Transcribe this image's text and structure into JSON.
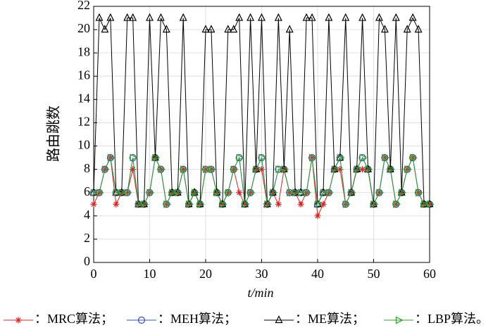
{
  "chart_data": {
    "type": "line",
    "x_label": "t/min",
    "y_label": "路由跳数",
    "x": [
      0,
      1,
      2,
      3,
      4,
      5,
      6,
      7,
      8,
      9,
      10,
      11,
      12,
      13,
      14,
      15,
      16,
      17,
      18,
      19,
      20,
      21,
      22,
      23,
      24,
      25,
      26,
      27,
      28,
      29,
      30,
      31,
      32,
      33,
      34,
      35,
      36,
      37,
      38,
      39,
      40,
      41,
      42,
      43,
      44,
      45,
      46,
      47,
      48,
      49,
      50,
      51,
      52,
      53,
      54,
      55,
      56,
      57,
      58,
      59,
      60
    ],
    "series": [
      {
        "name": "：MRC算法；",
        "color": "#e02020",
        "marker": "star",
        "values": [
          5,
          6,
          8,
          9,
          5,
          6,
          6,
          8,
          5,
          5,
          6,
          9,
          8,
          5,
          6,
          6,
          8,
          5,
          6,
          5,
          8,
          8,
          6,
          5,
          6,
          8,
          6,
          5,
          6,
          8,
          8,
          5,
          6,
          5,
          8,
          6,
          6,
          5,
          6,
          9,
          4,
          5,
          6,
          8,
          8,
          5,
          6,
          8,
          8,
          8,
          5,
          6,
          9,
          8,
          5,
          6,
          8,
          9,
          6,
          5,
          5
        ]
      },
      {
        "name": "：MEH算法；",
        "color": "#3050c0",
        "marker": "circle",
        "values": [
          6,
          6,
          8,
          9,
          6,
          6,
          6,
          9,
          5,
          5,
          6,
          9,
          8,
          5,
          6,
          6,
          8,
          5,
          6,
          5,
          8,
          8,
          6,
          5,
          6,
          8,
          9,
          5,
          6,
          8,
          9,
          5,
          6,
          8,
          8,
          6,
          6,
          6,
          6,
          9,
          5,
          6,
          6,
          8,
          9,
          5,
          6,
          8,
          9,
          8,
          5,
          6,
          9,
          8,
          5,
          6,
          8,
          9,
          6,
          5,
          5
        ]
      },
      {
        "name": "：ME算法；",
        "color": "#000000",
        "marker": "triangle",
        "values": [
          6,
          21,
          20,
          21,
          6,
          6,
          21,
          21,
          5,
          5,
          21,
          9,
          21,
          20,
          6,
          6,
          21,
          5,
          6,
          5,
          20,
          20,
          6,
          5,
          20,
          20,
          21,
          5,
          21,
          8,
          21,
          5,
          6,
          21,
          8,
          20,
          6,
          6,
          21,
          21,
          5,
          6,
          21,
          8,
          9,
          21,
          6,
          8,
          21,
          8,
          5,
          21,
          20,
          8,
          21,
          6,
          20,
          21,
          20,
          5,
          5
        ]
      },
      {
        "name": "：LBP算法。",
        "color": "#30a030",
        "marker": "right-triangle",
        "values": [
          6,
          6,
          8,
          9,
          6,
          6,
          6,
          9,
          5,
          5,
          6,
          9,
          8,
          5,
          6,
          6,
          8,
          5,
          6,
          5,
          8,
          8,
          6,
          5,
          6,
          8,
          9,
          5,
          6,
          8,
          9,
          5,
          6,
          8,
          8,
          6,
          6,
          6,
          6,
          9,
          5,
          6,
          6,
          8,
          9,
          5,
          6,
          8,
          9,
          8,
          5,
          6,
          9,
          8,
          5,
          6,
          8,
          9,
          6,
          5,
          5
        ]
      }
    ],
    "xlim": [
      0,
      60
    ],
    "xticks": [
      0,
      10,
      20,
      30,
      40,
      50,
      60
    ],
    "ylim": [
      0,
      22
    ],
    "yticks": [
      0,
      2,
      4,
      6,
      8,
      10,
      12,
      14,
      16,
      18,
      20,
      22
    ],
    "grid": true
  }
}
